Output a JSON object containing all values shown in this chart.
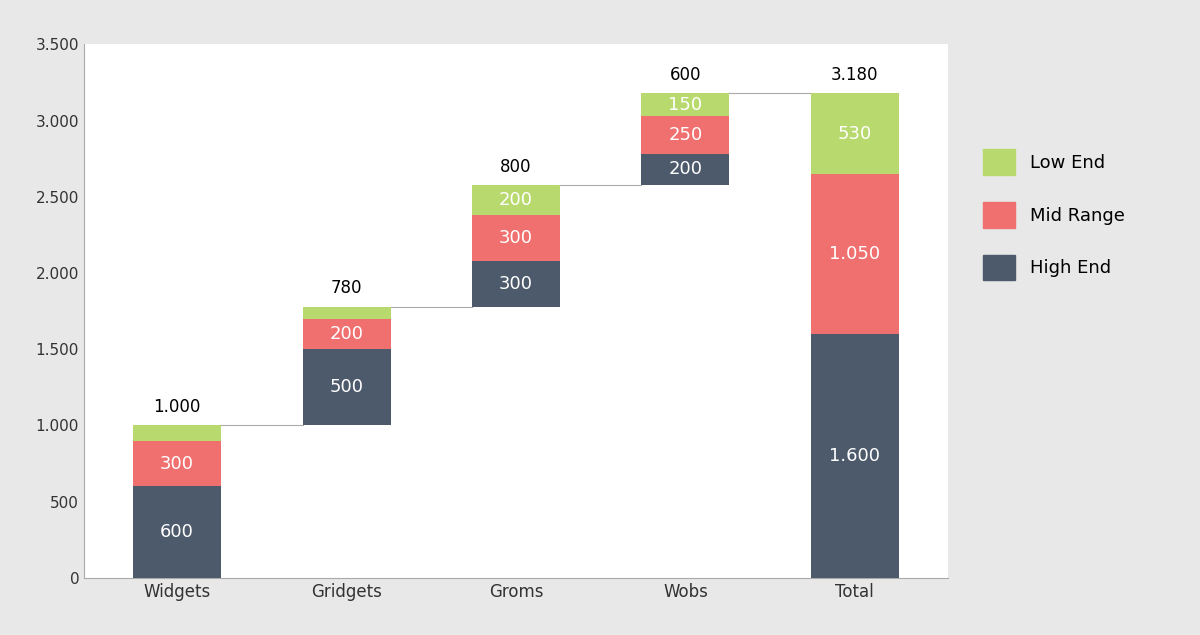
{
  "categories": [
    "Widgets",
    "Gridgets",
    "Groms",
    "Wobs",
    "Total"
  ],
  "high_end": [
    600,
    500,
    300,
    200,
    1600
  ],
  "mid_range": [
    300,
    200,
    300,
    250,
    1050
  ],
  "low_end": [
    100,
    80,
    200,
    150,
    530
  ],
  "bar_labels_high": [
    "600",
    "500",
    "300",
    "200",
    "1.600"
  ],
  "bar_labels_mid": [
    "300",
    "200",
    "300",
    "250",
    "1.050"
  ],
  "bar_labels_low": [
    "",
    "",
    "200",
    "150",
    "530"
  ],
  "totals_labels": [
    "1.000",
    "780",
    "800",
    "600",
    "3.180"
  ],
  "bottoms": [
    0,
    1000,
    1780,
    2580,
    0
  ],
  "color_high": "#4d5a6b",
  "color_mid": "#f07070",
  "color_low": "#b8d96e",
  "bar_width": 0.52,
  "ylim": [
    0,
    3500
  ],
  "yticks": [
    0,
    500,
    1000,
    1500,
    2000,
    2500,
    3000,
    3500
  ],
  "ytick_labels": [
    "0",
    "500",
    "1.000",
    "1.500",
    "2.000",
    "2.500",
    "3.000",
    "3.500"
  ],
  "legend_labels": [
    "Low End",
    "Mid Range",
    "High End"
  ],
  "background_color": "#ffffff",
  "line_color": "#aaaaaa",
  "label_fontsize": 12,
  "inside_fontsize": 13
}
